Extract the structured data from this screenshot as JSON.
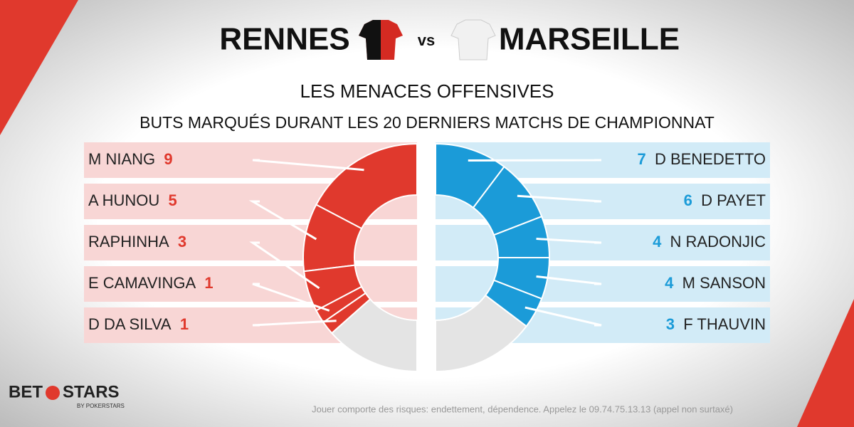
{
  "header": {
    "home": "RENNES",
    "vs": "vs",
    "away": "MARSEILLE"
  },
  "title": "LES MENACES OFFENSIVES",
  "subtitle": "BUTS MARQUÉS DURANT LES 20 DERNIERS MATCHS DE CHAMPIONNAT",
  "chart_data": [
    {
      "type": "half-donut",
      "categories": [
        "M NIANG",
        "A HUNOU",
        "RAPHINHA",
        "E CAMAVINGA",
        "D DA SILVA",
        null
      ],
      "values": [
        9,
        5,
        3,
        1,
        1,
        7
      ],
      "colors": [
        "#e0392d",
        "#e0392d",
        "#e0392d",
        "#e0392d",
        "#e0392d",
        "#e4e4e4"
      ]
    },
    {
      "type": "half-donut",
      "categories": [
        "D BENEDETTO",
        "D PAYET",
        "N RADONJIC",
        "M SANSON",
        "F THAUVIN",
        null
      ],
      "values": [
        7,
        6,
        4,
        4,
        3,
        10
      ],
      "colors": [
        "#1b9bd8",
        "#1b9bd8",
        "#1b9bd8",
        "#1b9bd8",
        "#1b9bd8",
        "#e4e4e4"
      ]
    }
  ],
  "logo": {
    "bet": "BET",
    "stars": "STARS",
    "by": "BY POKERSTARS"
  },
  "footer": "Jouer comporte des risques: endettement, dépendence. Appelez le 09.74.75.13.13 (appel non surtaxé)"
}
